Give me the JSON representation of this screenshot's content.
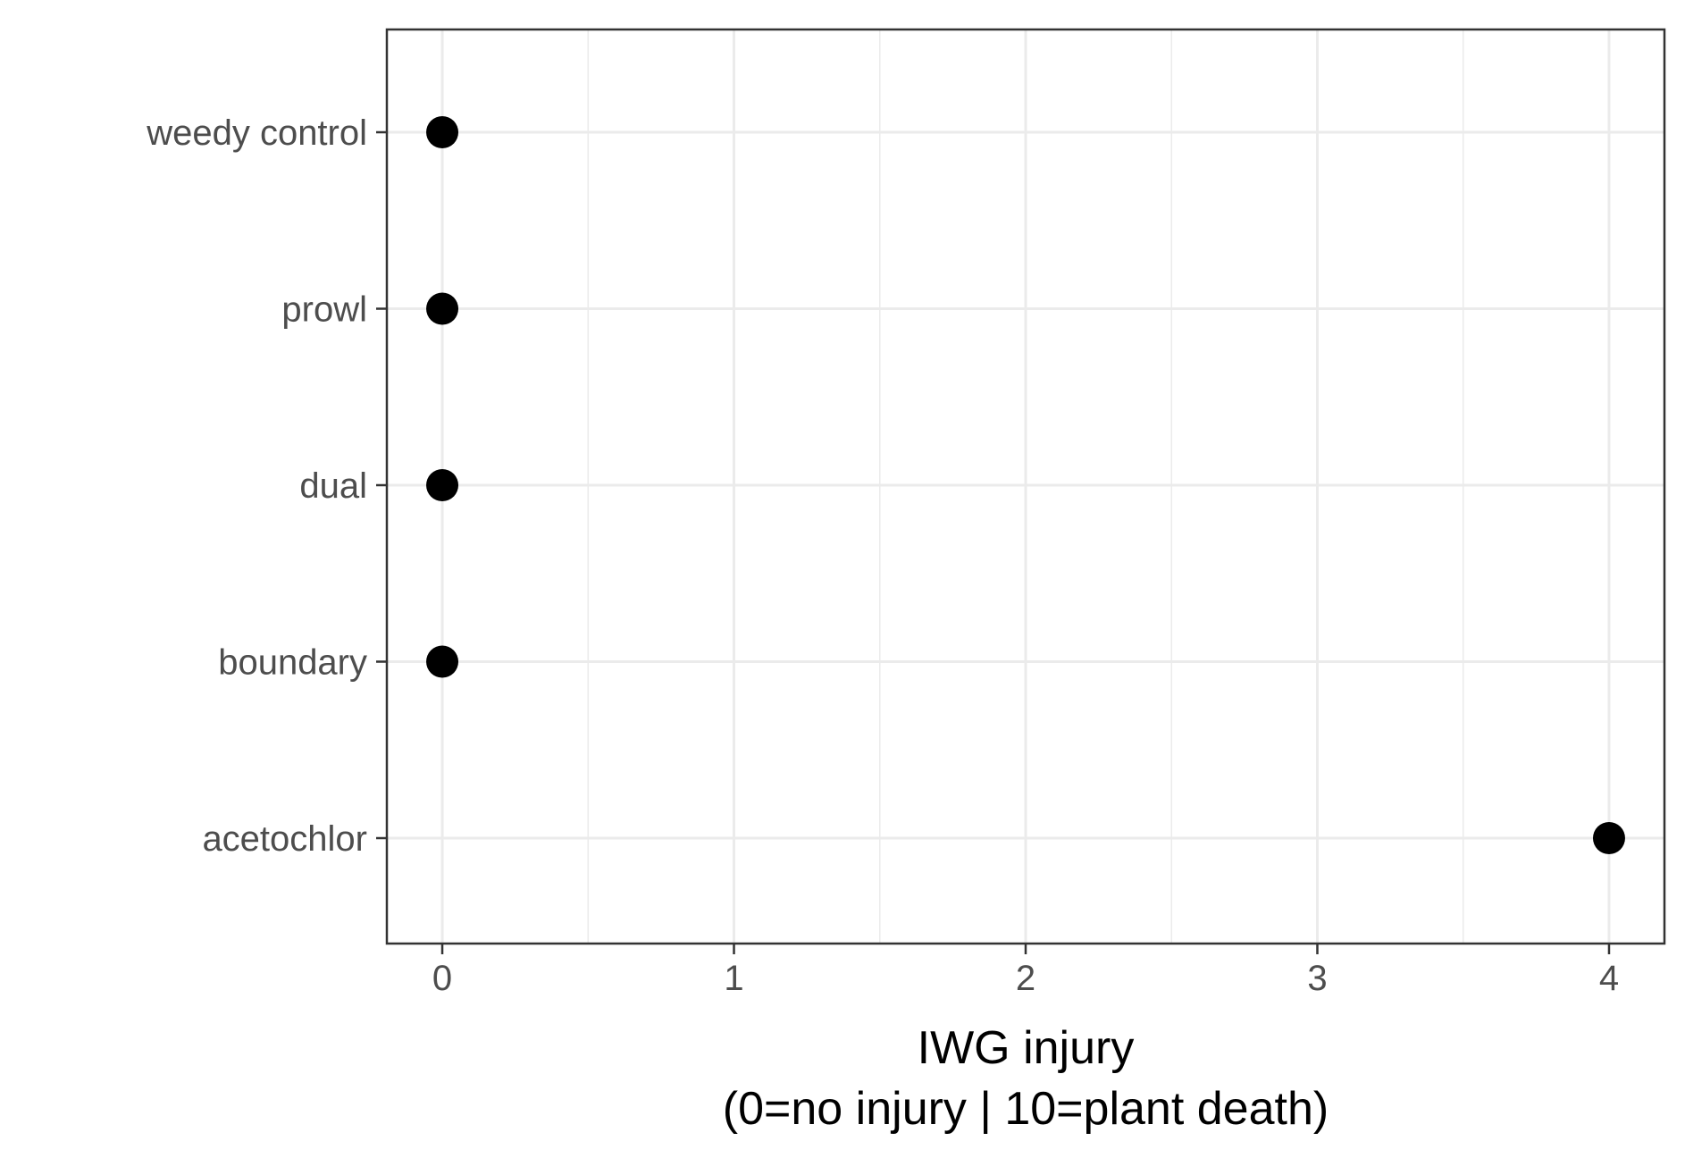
{
  "chart_data": {
    "type": "scatter",
    "categories": [
      "weedy control",
      "prowl",
      "dual",
      "boundary",
      "acetochlor"
    ],
    "values": [
      0,
      0,
      0,
      0,
      4
    ],
    "xlabel_line1": "IWG injury",
    "xlabel_line2": "(0=no injury | 10=plant death)",
    "xticks": [
      "0",
      "1",
      "2",
      "3",
      "4"
    ],
    "xlim": [
      -0.19,
      4.19
    ],
    "grid": true,
    "point_color": "#000000",
    "grid_color": "#ebebeb",
    "panel_border_color": "#333333"
  }
}
